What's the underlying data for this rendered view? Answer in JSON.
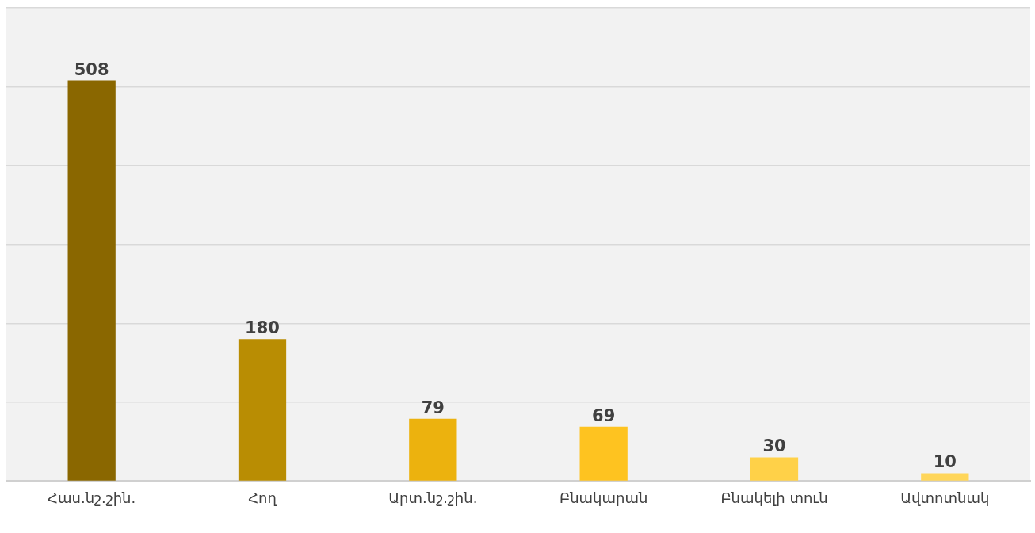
{
  "chart_data": {
    "type": "bar",
    "categories": [
      "Հաս.նշ.շին.",
      "Հող",
      "Արտ.նշ.շին.",
      "Բնակարան",
      "Բնակելի տուն",
      "Ավտոտնակ"
    ],
    "values": [
      508,
      180,
      79,
      69,
      30,
      10
    ],
    "colors": [
      "#8a6700",
      "#b98d03",
      "#ecb20e",
      "#fec320",
      "#ffd148",
      "#ffd65a"
    ],
    "ylim": [
      0,
      600
    ],
    "yticks": [
      {
        "value": 0,
        "label": null
      },
      {
        "value": 100,
        "label": null
      },
      {
        "value": 200,
        "label": null
      },
      {
        "value": 300,
        "label": null
      },
      {
        "value": 400,
        "label": null
      },
      {
        "value": 500,
        "label": null
      },
      {
        "value": 600,
        "label": null
      }
    ],
    "tick_labels": "x",
    "grid": "y",
    "data_labels": true
  }
}
